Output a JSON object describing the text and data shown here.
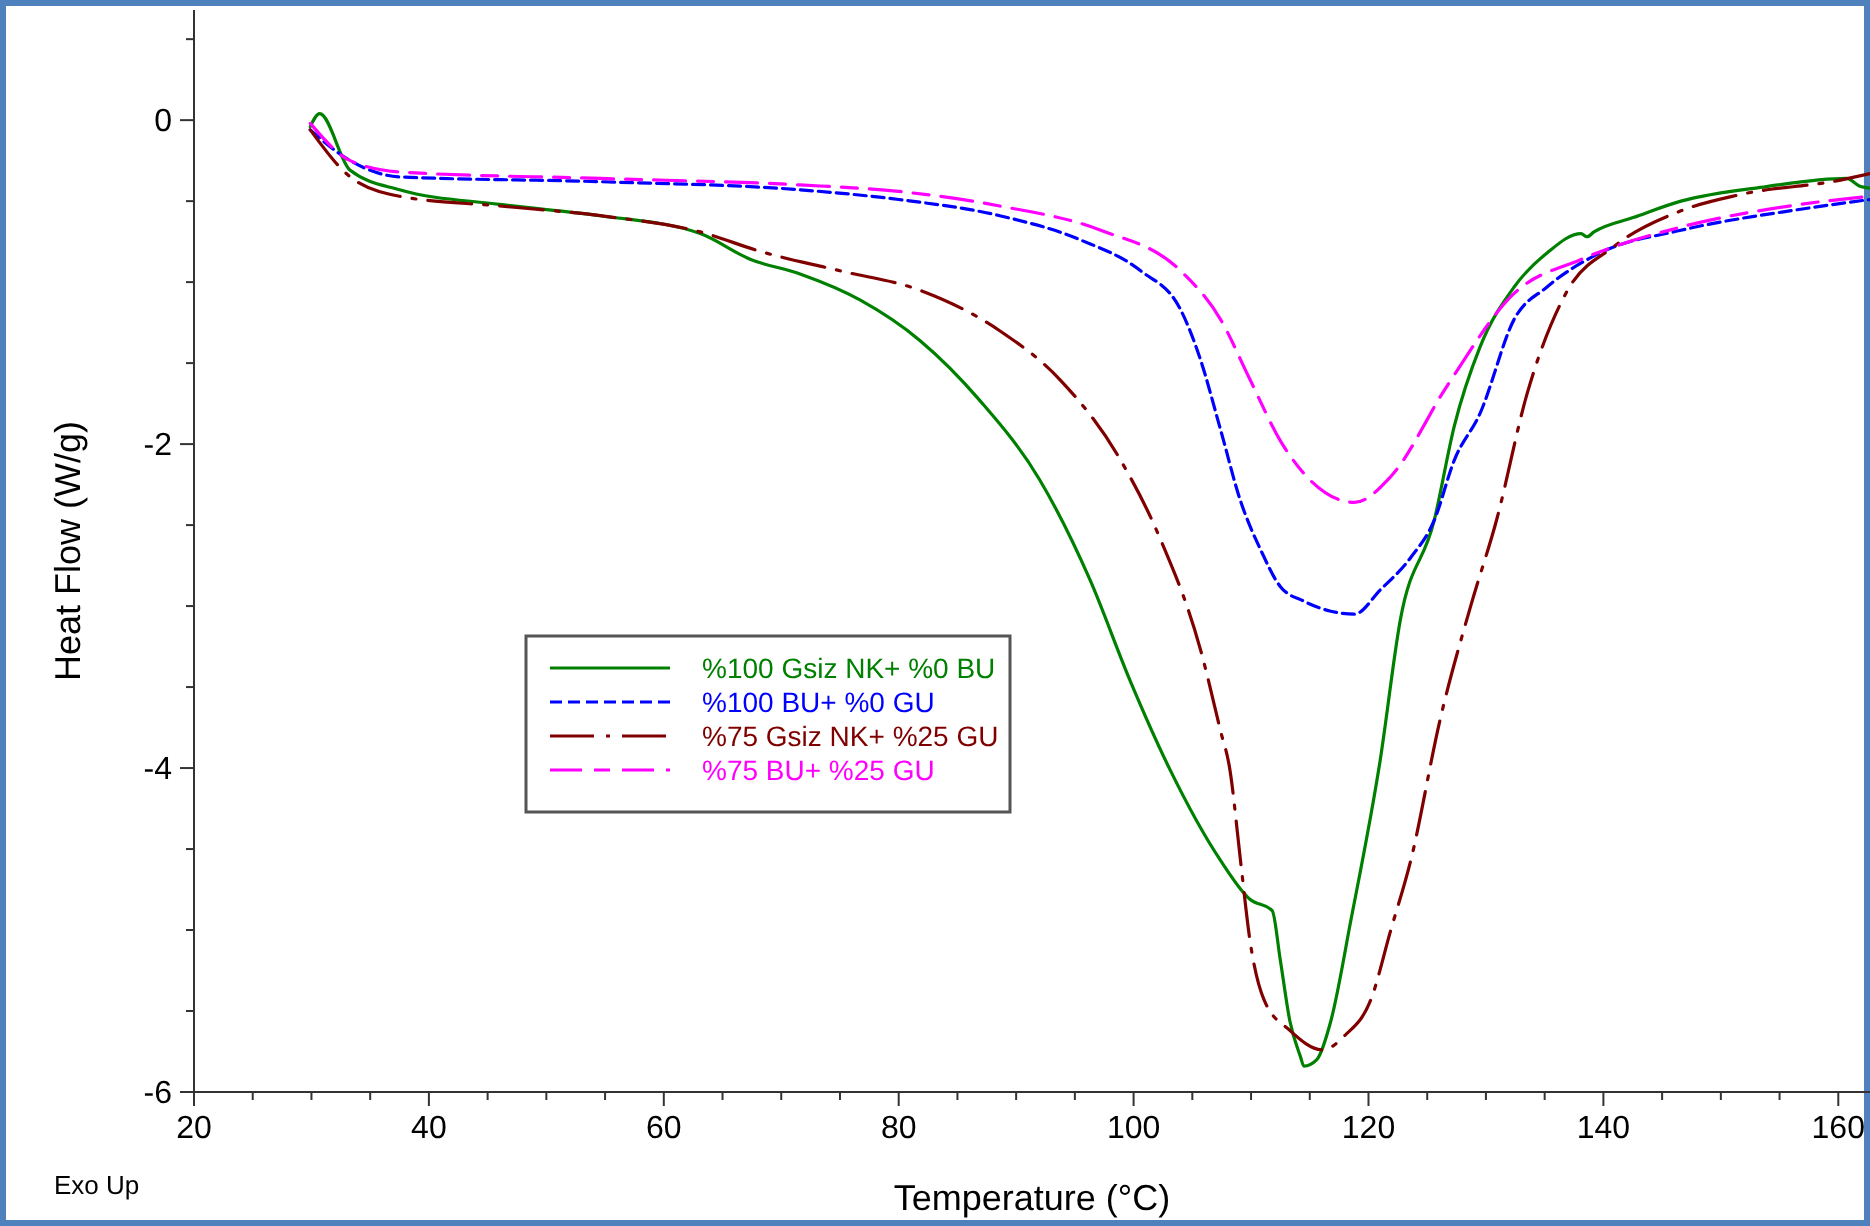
{
  "chart_data": {
    "type": "line",
    "xlabel": "Temperature (°C)",
    "ylabel": "Heat Flow (W/g)",
    "annotations": [
      "Exo Up"
    ],
    "xlim": [
      20,
      162.7
    ],
    "ylim": [
      -6,
      0.68
    ],
    "xticks": [
      20,
      {
        "value": 25,
        "label": null
      },
      {
        "value": 30,
        "label": null
      },
      {
        "value": 35,
        "label": null
      },
      40,
      {
        "value": 45,
        "label": null
      },
      {
        "value": 50,
        "label": null
      },
      {
        "value": 55,
        "label": null
      },
      60,
      {
        "value": 65,
        "label": null
      },
      {
        "value": 70,
        "label": null
      },
      {
        "value": 75,
        "label": null
      },
      80,
      {
        "value": 85,
        "label": null
      },
      {
        "value": 90,
        "label": null
      },
      {
        "value": 95,
        "label": null
      },
      100,
      {
        "value": 105,
        "label": null
      },
      {
        "value": 110,
        "label": null
      },
      {
        "value": 115,
        "label": null
      },
      120,
      {
        "value": 125,
        "label": null
      },
      {
        "value": 130,
        "label": null
      },
      {
        "value": 135,
        "label": null
      },
      140,
      {
        "value": 145,
        "label": null
      },
      {
        "value": 150,
        "label": null
      },
      {
        "value": 155,
        "label": null
      },
      160
    ],
    "yticks": [
      -6,
      {
        "value": -5.5,
        "label": null
      },
      {
        "value": -5,
        "label": null
      },
      {
        "value": -4.5,
        "label": null
      },
      -4,
      {
        "value": -3.5,
        "label": null
      },
      {
        "value": -3,
        "label": null
      },
      {
        "value": -2.5,
        "label": null
      },
      -2,
      {
        "value": -1.5,
        "label": null
      },
      {
        "value": -1,
        "label": null
      },
      {
        "value": -0.5,
        "label": null
      },
      0,
      {
        "value": 0.5,
        "label": null
      }
    ],
    "grid": false,
    "legend": "left",
    "marker": "none",
    "series": [
      {
        "name": "%100 Gsiz NK+ %0 BU",
        "color": "#008000",
        "line_style": "solid",
        "x": [
          29.9,
          30.7,
          33.3,
          37.5,
          46,
          54.6,
          63.1,
          67.4,
          71.6,
          76.7,
          81.8,
          86.9,
          92,
          96.3,
          99.7,
          103.1,
          107.4,
          109.9,
          111.8,
          112.5,
          113.3,
          114.2,
          114.5,
          115.6,
          116.8,
          118.5,
          121,
          122.7,
          125.6,
          127.3,
          129.5,
          132.4,
          135.2,
          138.1,
          138.6,
          139.2,
          142.6,
          146.6,
          153.9,
          160.7,
          161.9,
          162.7
        ],
        "values": [
          -0.04,
          0.04,
          -0.31,
          -0.43,
          -0.52,
          -0.59,
          -0.7,
          -0.86,
          -0.95,
          -1.11,
          -1.36,
          -1.73,
          -2.22,
          -2.84,
          -3.46,
          -4.01,
          -4.57,
          -4.81,
          -4.88,
          -5.19,
          -5.56,
          -5.78,
          -5.84,
          -5.8,
          -5.56,
          -4.94,
          -3.95,
          -3.09,
          -2.47,
          -1.89,
          -1.4,
          -1.03,
          -0.82,
          -0.7,
          -0.72,
          -0.69,
          -0.6,
          -0.5,
          -0.41,
          -0.36,
          -0.41,
          -0.42
        ]
      },
      {
        "name": "%100 BU+ %0 GU",
        "color": "#0000ff",
        "line_style": "dashed",
        "x": [
          29.9,
          33.3,
          37.5,
          54.6,
          71.6,
          80,
          88.6,
          95.5,
          100.6,
          104,
          105.7,
          107.4,
          109.1,
          110.8,
          112.5,
          114.5,
          116.7,
          118.8,
          121,
          123.6,
          125.6,
          127.3,
          129.5,
          132.4,
          135.2,
          139.7,
          146.6,
          156.8,
          162.7
        ],
        "values": [
          -0.06,
          -0.25,
          -0.35,
          -0.38,
          -0.43,
          -0.49,
          -0.59,
          -0.74,
          -0.93,
          -1.17,
          -1.48,
          -1.91,
          -2.35,
          -2.65,
          -2.88,
          -2.97,
          -3.03,
          -3.05,
          -2.9,
          -2.7,
          -2.47,
          -2.1,
          -1.81,
          -1.23,
          -1.03,
          -0.82,
          -0.68,
          -0.55,
          -0.49
        ]
      },
      {
        "name": "%75 Gsiz NK+ %25 GU",
        "color": "#800000",
        "line_style": "dashdot",
        "x": [
          29.9,
          33.3,
          37.5,
          46,
          54.6,
          63.1,
          68.2,
          75,
          81.8,
          88.6,
          93.7,
          98.9,
          102.3,
          105.7,
          107.4,
          108.2,
          109.1,
          109.9,
          111.1,
          113.3,
          116.1,
          118,
          120.2,
          121.9,
          123.6,
          126.1,
          128.7,
          130.9,
          133.5,
          136.8,
          140.9,
          146.6,
          151.6,
          160.2,
          162.7
        ],
        "values": [
          -0.06,
          -0.35,
          -0.47,
          -0.53,
          -0.59,
          -0.69,
          -0.81,
          -0.93,
          -1.05,
          -1.3,
          -1.6,
          -2.1,
          -2.59,
          -3.27,
          -3.77,
          -4.01,
          -4.57,
          -5.06,
          -5.43,
          -5.62,
          -5.74,
          -5.65,
          -5.43,
          -5,
          -4.57,
          -3.7,
          -3,
          -2.47,
          -1.69,
          -1.07,
          -0.78,
          -0.56,
          -0.46,
          -0.37,
          -0.33
        ]
      },
      {
        "name": "%75 BU+ %25 GU",
        "color": "#ff00ff",
        "line_style": "longdash",
        "x": [
          29.9,
          33.3,
          37.5,
          54.6,
          71.6,
          80,
          88.6,
          97.2,
          104,
          107.4,
          109.9,
          112.5,
          115,
          118.8,
          121.9,
          126.7,
          132.4,
          138.1,
          146.6,
          156.8,
          162.7
        ],
        "values": [
          -0.02,
          -0.25,
          -0.32,
          -0.36,
          -0.4,
          -0.44,
          -0.53,
          -0.68,
          -0.93,
          -1.23,
          -1.6,
          -1.98,
          -2.22,
          -2.36,
          -2.2,
          -1.64,
          -1.07,
          -0.86,
          -0.66,
          -0.52,
          -0.47
        ]
      }
    ]
  }
}
